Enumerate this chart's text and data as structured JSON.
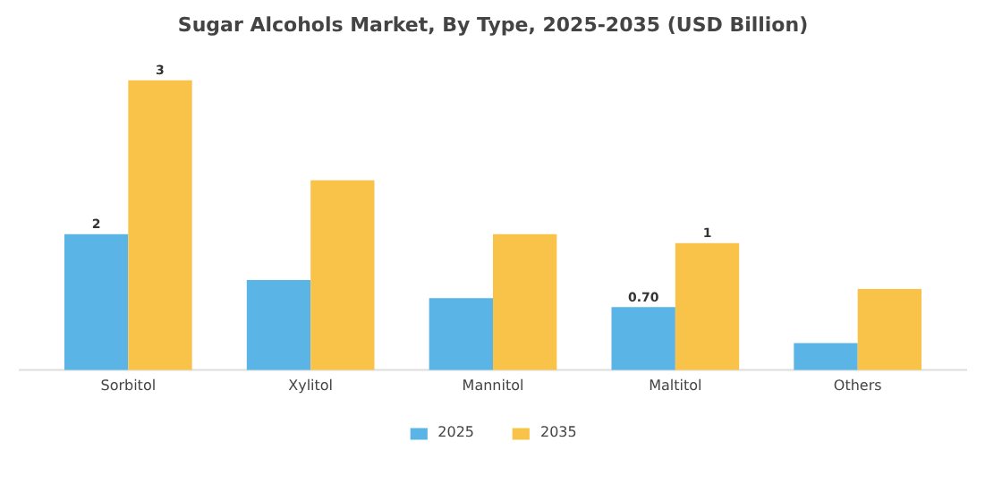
{
  "chart_data": {
    "type": "bar",
    "title": "Sugar Alcohols Market, By Type, 2025-2035 (USD Billion)",
    "tick_labels": "x",
    "categories": [
      "Sorbitol",
      "Xylitol",
      "Mannitol",
      "Maltitol",
      "Others"
    ],
    "series": [
      {
        "name": "2025",
        "color": "#5ab4e5",
        "values": [
          1.51,
          1.0,
          0.8,
          0.7,
          0.3
        ],
        "value_labels": [
          "2",
          null,
          null,
          "0.70",
          null
        ]
      },
      {
        "name": "2035",
        "color": "#f9c34a",
        "values": [
          3.22,
          2.11,
          1.51,
          1.41,
          0.9
        ],
        "value_labels": [
          "3",
          null,
          null,
          "1",
          null
        ]
      }
    ],
    "legend": "bottom"
  }
}
